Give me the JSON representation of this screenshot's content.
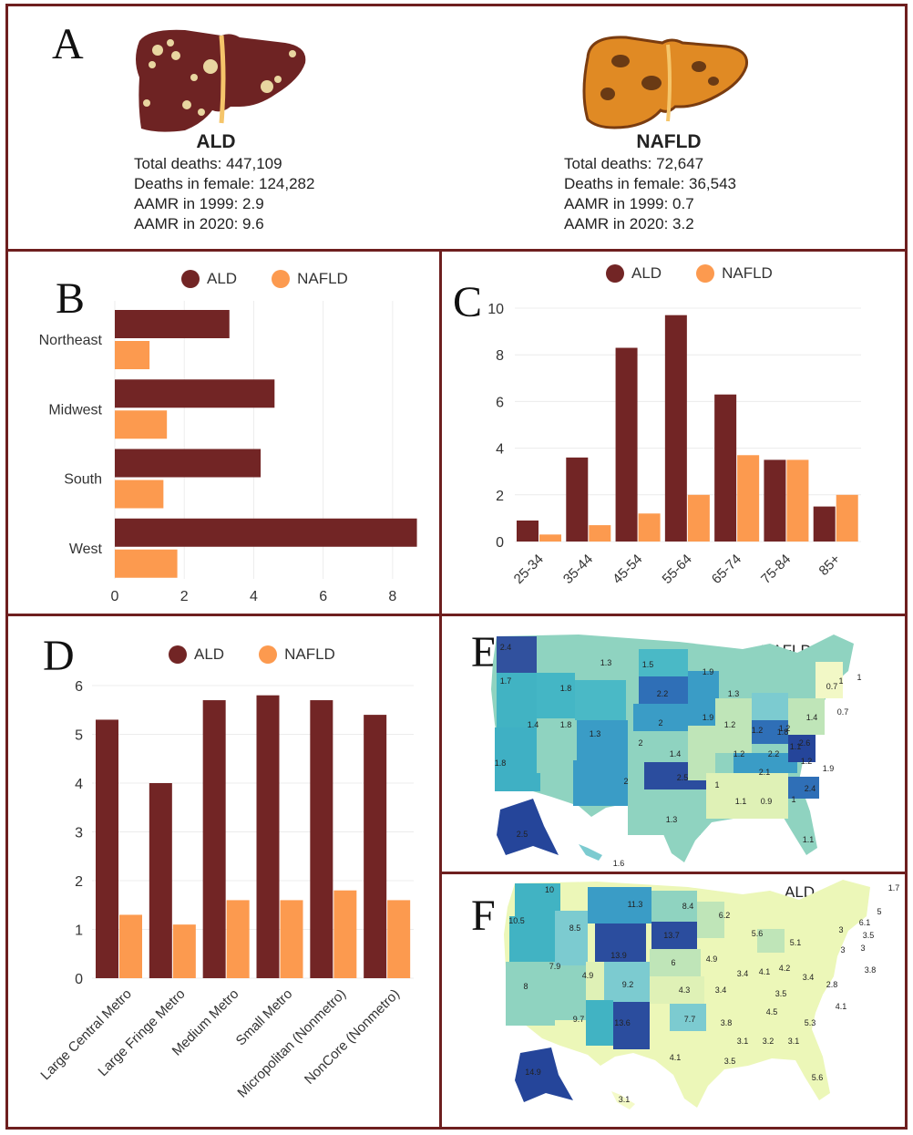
{
  "colors": {
    "ald": "#722525",
    "nafld": "#fc9a4f",
    "border": "#6e1f1f"
  },
  "panelA": {
    "letter": "A",
    "ald": {
      "name": "ALD",
      "lines": [
        "Total deaths: 447,109",
        "Deaths in female: 124,282",
        "AAMR in 1999: 2.9",
        "AAMR in 2020: 9.6"
      ]
    },
    "nafld": {
      "name": "NAFLD",
      "lines": [
        "Total deaths: 72,647",
        "Deaths in female: 36,543",
        "AAMR in 1999: 0.7",
        "AAMR in 2020: 3.2"
      ]
    }
  },
  "legend": {
    "ald": "ALD",
    "nafld": "NAFLD"
  },
  "panelB": {
    "letter": "B"
  },
  "panelC": {
    "letter": "C"
  },
  "panelD": {
    "letter": "D"
  },
  "panelE": {
    "letter": "E",
    "title": "NAFLD",
    "labels": [
      "2.4",
      "1.3",
      "1.5",
      "1.9",
      "1.7",
      "1.8",
      "2.2",
      "1.3",
      "1",
      "0.7",
      "1",
      "1.8",
      "1.2",
      "0.7",
      "1.4",
      "1.3",
      "2",
      "1.9",
      "1.2",
      "1.2",
      "1.8",
      "1.4",
      "1.1",
      "1.8",
      "2",
      "1.4",
      "1.2",
      "2",
      "2.6",
      "2.2",
      "1.2",
      "1.9",
      "2.1",
      "2.5",
      "1",
      "1.1",
      "0.9",
      "1",
      "2.4",
      "1.3",
      "1.1",
      "2.5",
      "1.6"
    ]
  },
  "panelF": {
    "letter": "F",
    "title": "ALD",
    "labels": [
      "1.7",
      "10",
      "11.3",
      "8.4",
      "6.2",
      "5",
      "10.5",
      "8.5",
      "6.1",
      "13.9",
      "13.7",
      "5.6",
      "5.1",
      "3",
      "3.5",
      "7.9",
      "4.9",
      "6",
      "4.9",
      "3",
      "3",
      "3.8",
      "8",
      "9.2",
      "4.3",
      "3.4",
      "4.1",
      "4.2",
      "3.4",
      "2.8",
      "3.4",
      "3.5",
      "4.5",
      "4.1",
      "9.7",
      "13.6",
      "7.7",
      "3.8",
      "5.3",
      "3.1",
      "3.2",
      "3.1",
      "4.1",
      "3.5",
      "5.6",
      "14.9",
      "3.1"
    ]
  },
  "chart_data": [
    {
      "type": "bar",
      "orientation": "horizontal",
      "categories": [
        "Northeast",
        "Midwest",
        "South",
        "West"
      ],
      "series": [
        {
          "name": "ALD",
          "values": [
            3.3,
            4.6,
            4.2,
            8.7
          ]
        },
        {
          "name": "NAFLD",
          "values": [
            1.0,
            1.5,
            1.4,
            1.8
          ]
        }
      ],
      "xticks": [
        "0",
        "2",
        "4",
        "6",
        "8"
      ],
      "xlim": [
        0,
        9
      ],
      "grid": true,
      "legend": "top"
    },
    {
      "type": "bar",
      "categories": [
        "25-34",
        "35-44",
        "45-54",
        "55-64",
        "65-74",
        "75-84",
        "85+"
      ],
      "series": [
        {
          "name": "ALD",
          "values": [
            0.9,
            3.6,
            8.3,
            9.7,
            6.3,
            3.5,
            1.5
          ]
        },
        {
          "name": "NAFLD",
          "values": [
            0.3,
            0.7,
            1.2,
            2.0,
            3.7,
            3.5,
            2.0
          ]
        }
      ],
      "yticks": [
        "0",
        "2",
        "4",
        "6",
        "8",
        "10"
      ],
      "ylim": [
        0,
        10
      ],
      "grid": true,
      "legend": "top"
    },
    {
      "type": "bar",
      "categories": [
        "Large Central Metro",
        "Large Fringe Metro",
        "Medium Metro",
        "Small Metro",
        "Micropolitan (Nonmetro)",
        "NonCore (Nonmetro)"
      ],
      "series": [
        {
          "name": "ALD",
          "values": [
            5.3,
            4.0,
            5.7,
            5.8,
            5.7,
            5.4
          ]
        },
        {
          "name": "NAFLD",
          "values": [
            1.3,
            1.1,
            1.6,
            1.6,
            1.8,
            1.6
          ]
        }
      ],
      "yticks": [
        "0",
        "1",
        "2",
        "3",
        "4",
        "5",
        "6"
      ],
      "ylim": [
        0,
        6
      ],
      "grid": true,
      "legend": "top"
    }
  ]
}
